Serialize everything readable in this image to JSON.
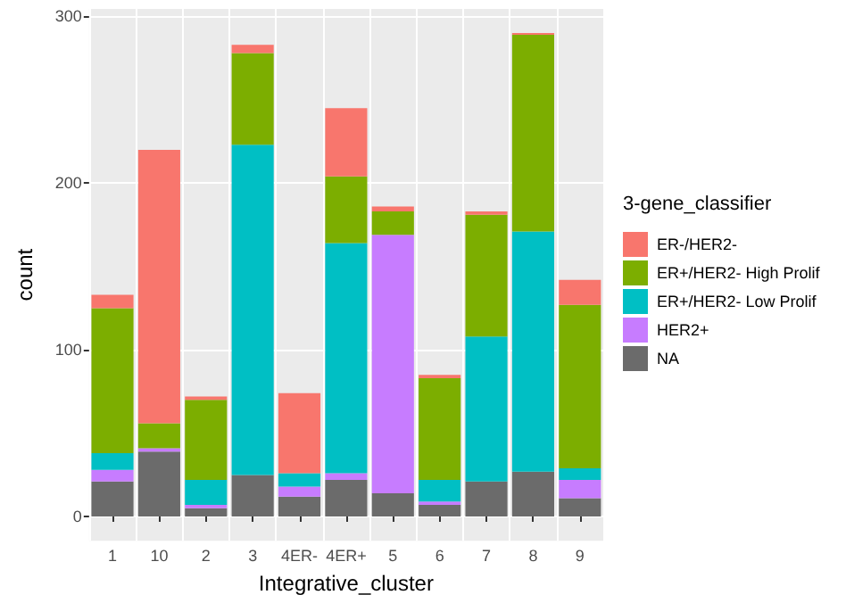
{
  "chart_data": {
    "type": "bar",
    "stacked": true,
    "xlabel": "Integrative_cluster",
    "ylabel": "count",
    "legend_title": "3-gene_classifier",
    "legend": "right",
    "grid": true,
    "categories": [
      "1",
      "10",
      "2",
      "3",
      "4ER-",
      "4ER+",
      "5",
      "6",
      "7",
      "8",
      "9"
    ],
    "ylim": [
      -14.5,
      304.5
    ],
    "yticks": [
      0,
      100,
      200,
      300
    ],
    "series": [
      {
        "name": "NA",
        "color": "#6b6b6b",
        "values": [
          21,
          39,
          5,
          25,
          12,
          22,
          14,
          7,
          21,
          27,
          11
        ]
      },
      {
        "name": "HER2+",
        "color": "#c77cff",
        "values": [
          7,
          2,
          2,
          0,
          6,
          4,
          155,
          2,
          0,
          0,
          11
        ]
      },
      {
        "name": "ER+/HER2- Low Prolif",
        "color": "#00bfc4",
        "values": [
          10,
          0,
          15,
          198,
          8,
          138,
          0,
          13,
          87,
          144,
          7
        ]
      },
      {
        "name": "ER+/HER2- High Prolif",
        "color": "#7cae00",
        "values": [
          87,
          15,
          48,
          55,
          0,
          40,
          14,
          61,
          73,
          118,
          98
        ]
      },
      {
        "name": "ER-/HER2-",
        "color": "#f8766d",
        "values": [
          8,
          164,
          2,
          5,
          48,
          41,
          3,
          2,
          2,
          1,
          15
        ]
      }
    ]
  }
}
